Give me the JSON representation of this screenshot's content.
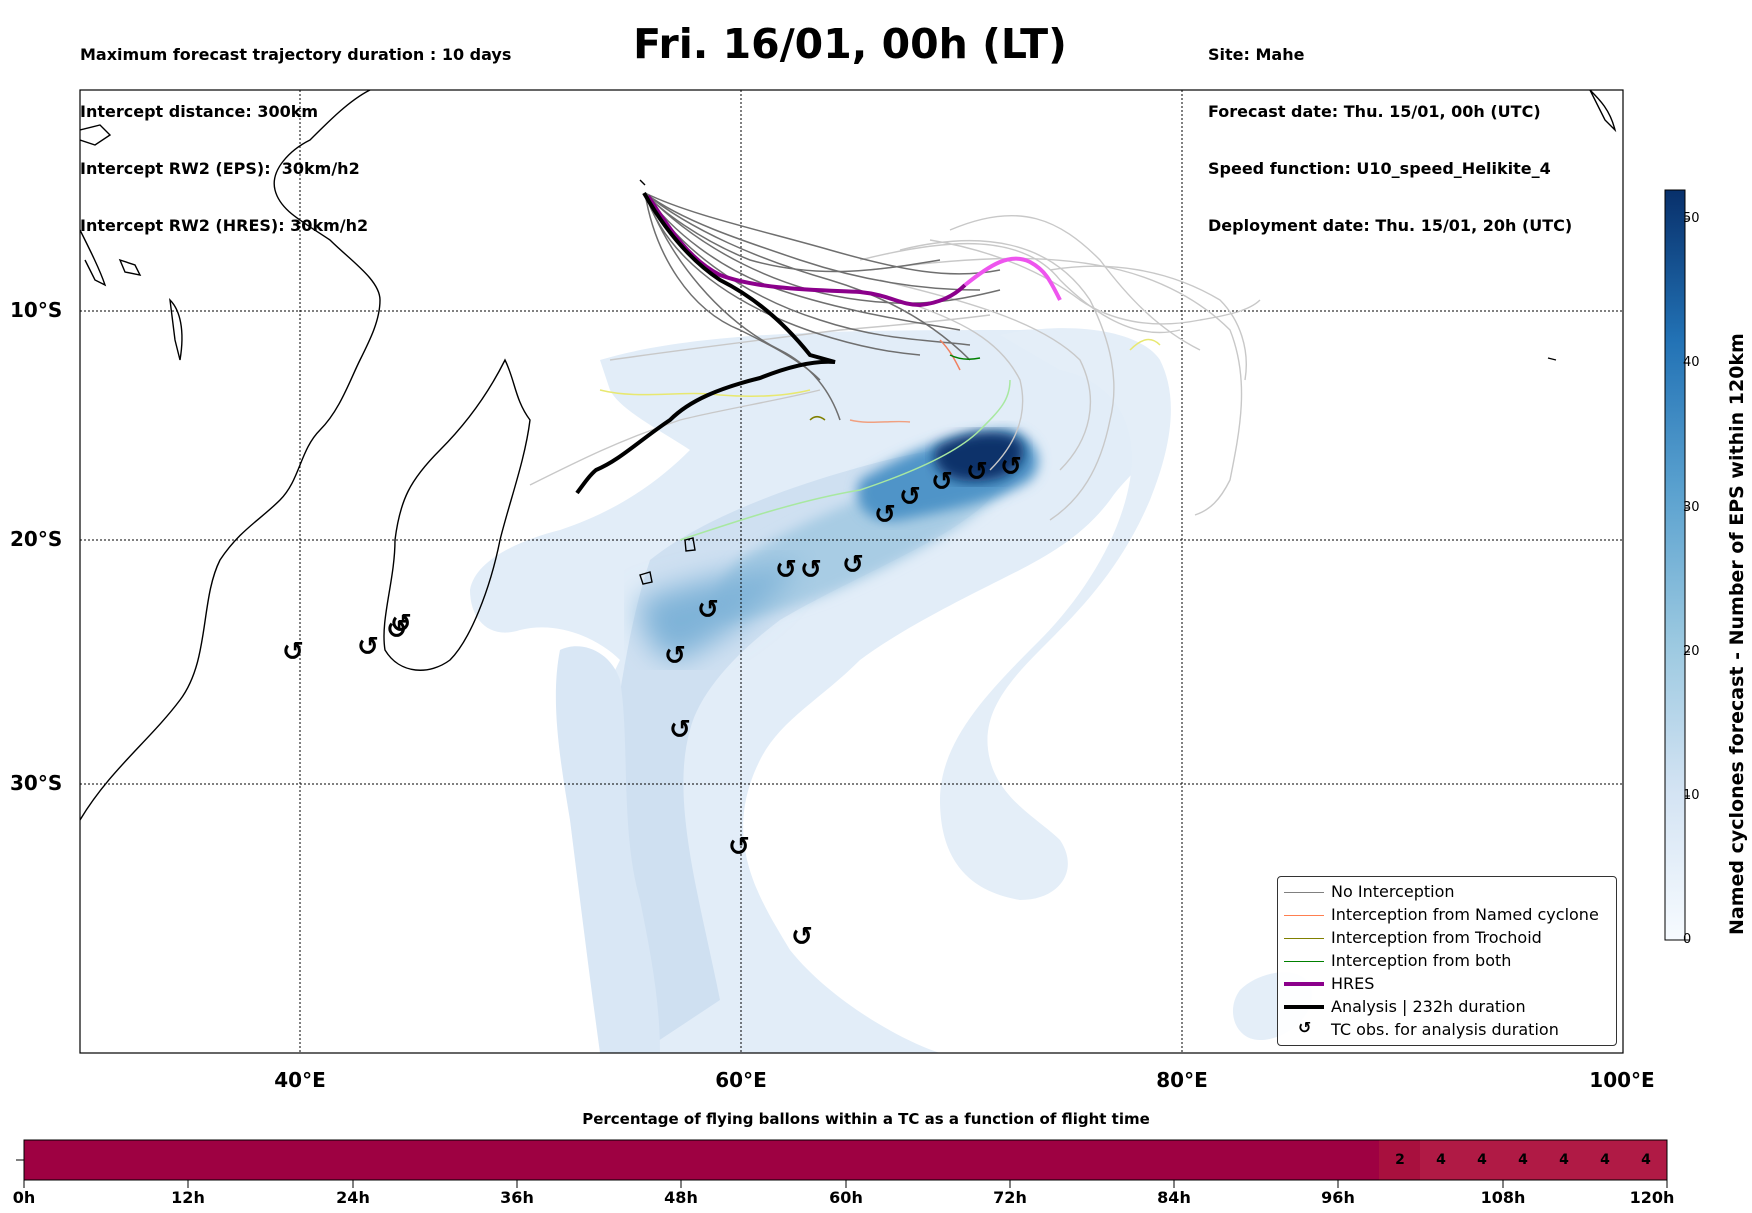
{
  "header": {
    "left_lines": [
      "Maximum forecast trajectory duration : 10 days",
      "Intercept distance: 300km",
      "Intercept RW2 (EPS):  30km/h2",
      "Intercept RW2 (HRES): 30km/h2"
    ],
    "right_lines": [
      "Site: Mahe",
      "Forecast date: Thu. 15/01, 00h (UTC)",
      "Speed function: U10_speed_Helikite_4",
      "Deployment date: Thu. 15/01, 20h (UTC)"
    ],
    "title": "Fri. 16/01, 00h (LT)"
  },
  "map": {
    "lat_labels": [
      "10°S",
      "20°S",
      "30°S"
    ],
    "lon_labels": [
      "40°E",
      "60°E",
      "80°E",
      "100°E"
    ],
    "tc_symbol": "↺",
    "colors": {
      "hres_early": "#8b008b",
      "hres_late": "#ee55ee",
      "analysis": "#000000",
      "no_interception": "#777777",
      "named_cyclone": "#f08060",
      "trochoid": "#808000",
      "both": "#008000",
      "density_dark": "#08306b"
    }
  },
  "legend": [
    {
      "label": "No Interception",
      "color": "#808080",
      "width": 1.5,
      "type": "line"
    },
    {
      "label": "Interception from Named cyclone",
      "color": "#ff7f50",
      "width": 1.5,
      "type": "line"
    },
    {
      "label": "Interception from Trochoid",
      "color": "#808000",
      "width": 1.5,
      "type": "line"
    },
    {
      "label": "Interception from both",
      "color": "#008000",
      "width": 1.5,
      "type": "line"
    },
    {
      "label": "HRES",
      "color": "#8b008b",
      "width": 4,
      "type": "line"
    },
    {
      "label": "Analysis | 232h duration",
      "color": "#000000",
      "width": 4,
      "type": "line"
    },
    {
      "label": "TC obs. for analysis duration",
      "color": "#000000",
      "type": "marker",
      "symbol": "↺"
    }
  ],
  "colorbar": {
    "title": "Named cyclones forecast - Number of EPS within 120km",
    "ticks": [
      "0",
      "10",
      "20",
      "30",
      "40",
      "50"
    ],
    "max": 52,
    "colors": [
      "#f7fbff",
      "#08306b"
    ]
  },
  "bottom_bar": {
    "title": "Percentage of flying ballons within a TC as a function of flight time",
    "tick_labels": [
      "0h",
      "12h",
      "24h",
      "36h",
      "48h",
      "60h",
      "72h",
      "84h",
      "96h",
      "108h",
      "120h"
    ],
    "cells": [
      {
        "value": "2",
        "color": "#a8103e"
      },
      {
        "value": "4",
        "color": "#b01a45"
      },
      {
        "value": "4",
        "color": "#b01a45"
      },
      {
        "value": "4",
        "color": "#b01a45"
      },
      {
        "value": "4",
        "color": "#b01a45"
      },
      {
        "value": "4",
        "color": "#b01a45"
      },
      {
        "value": "4",
        "color": "#b01a45"
      }
    ],
    "base_color": "#9e0142"
  }
}
